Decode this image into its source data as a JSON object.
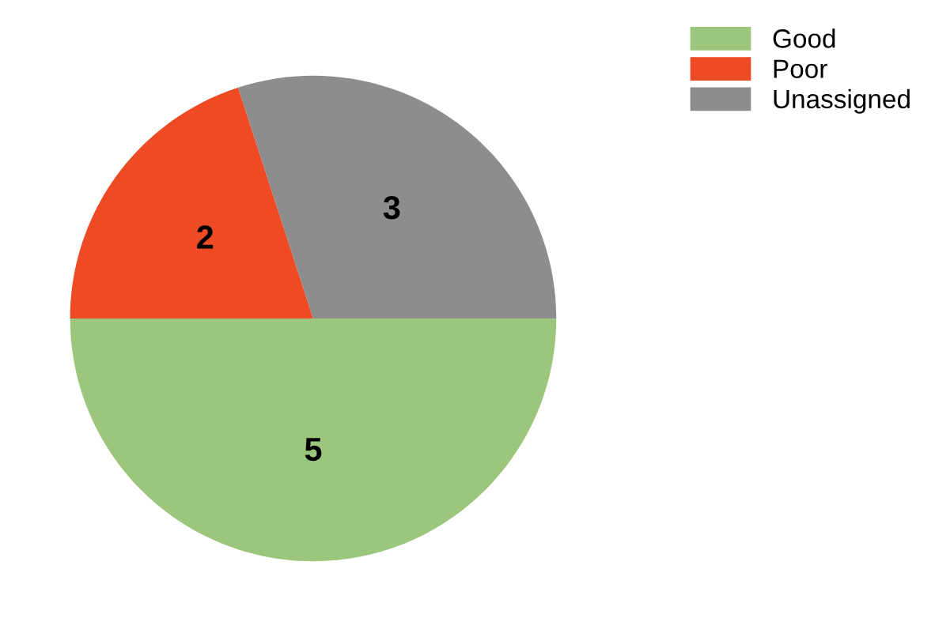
{
  "chart_data": {
    "type": "pie",
    "categories": [
      "Good",
      "Poor",
      "Unassigned"
    ],
    "values": [
      5,
      2,
      3
    ],
    "colors": [
      "#9cc67b",
      "#ee4a24",
      "#8d8c8e"
    ],
    "data_labels": true,
    "legend": "top right"
  }
}
